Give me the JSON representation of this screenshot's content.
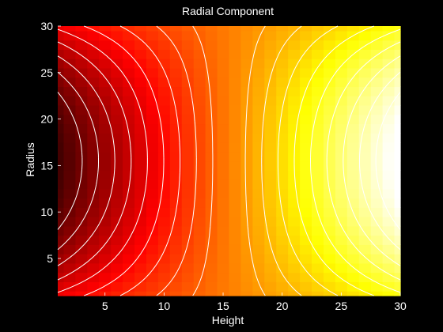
{
  "chart_data": {
    "type": "heatmap",
    "title": "Radial Component",
    "xlabel": "Height",
    "ylabel": "Radius",
    "xlim": [
      1,
      30
    ],
    "ylim": [
      1,
      30
    ],
    "xticks": [
      5,
      10,
      15,
      20,
      25,
      30
    ],
    "yticks": [
      5,
      10,
      15,
      20,
      25,
      30
    ],
    "grid": "off",
    "colormap": "hot",
    "overlay": "contour lines",
    "contour_color": "#ffffff",
    "background_color": "#000000",
    "field_description": "value lowest near height 1, radius 15.5; highest near height 30, radius 15.5; mid-level band around height 15.5",
    "min_location": {
      "x": 1,
      "y": 15.5
    },
    "max_location": {
      "x": 30,
      "y": 15.5
    },
    "contour_levels": [
      -0.9,
      -0.8,
      -0.7,
      -0.6,
      -0.5,
      -0.4,
      -0.3,
      -0.2,
      -0.1,
      0.1,
      0.2,
      0.3,
      0.4,
      0.5,
      0.6,
      0.7,
      0.8,
      0.9
    ]
  }
}
